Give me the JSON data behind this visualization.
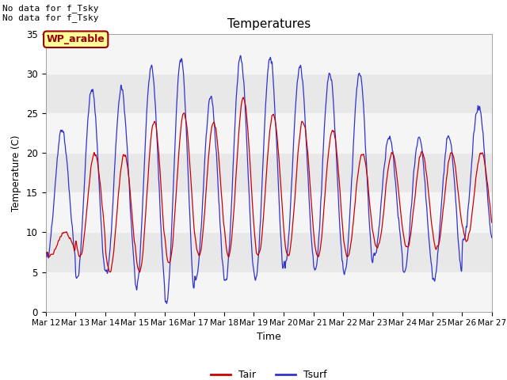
{
  "title": "Temperatures",
  "xlabel": "Time",
  "ylabel": "Temperature (C)",
  "ylim": [
    0,
    35
  ],
  "yticks": [
    0,
    5,
    10,
    15,
    20,
    25,
    30,
    35
  ],
  "date_labels": [
    "Mar 12",
    "Mar 13",
    "Mar 14",
    "Mar 15",
    "Mar 16",
    "Mar 17",
    "Mar 18",
    "Mar 19",
    "Mar 20",
    "Mar 21",
    "Mar 22",
    "Mar 23",
    "Mar 24",
    "Mar 25",
    "Mar 26",
    "Mar 27"
  ],
  "tair_color": "#cc0000",
  "tsurf_color": "#3333cc",
  "bg_color": "#e8e8e8",
  "stripe_color": "#f5f5f5",
  "wp_arable_color": "#990000",
  "wp_arable_bg": "#ffff99",
  "wp_arable_edge": "#990000",
  "text_no_data": "No data for f_Tsky\nNo data for f_Tsky",
  "wp_arable_label": "WP_arable",
  "legend_tair": "Tair",
  "legend_tsurf": "Tsurf",
  "figsize": [
    6.4,
    4.8
  ],
  "dpi": 100
}
